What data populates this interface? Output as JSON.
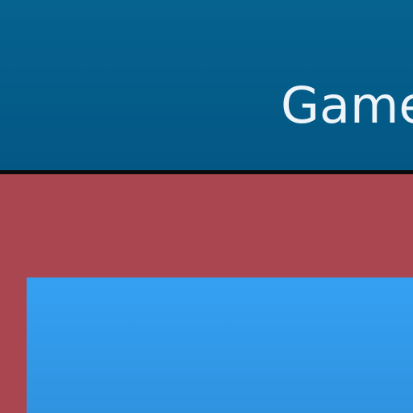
{
  "header": {
    "title": "Game"
  },
  "colors": {
    "header_bg": "#035784",
    "header_text": "#eef5fa",
    "divider": "#0b0b0b",
    "panel_bg": "#a94650",
    "content_bg": "#35a0f2"
  }
}
